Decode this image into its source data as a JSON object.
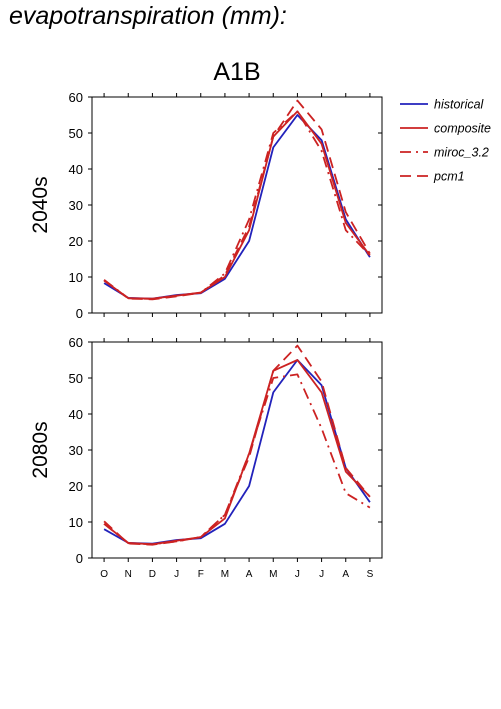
{
  "page_title": "evapotranspiration (mm):",
  "colors": {
    "historical": "#2222bb",
    "projection": "#cc2222"
  },
  "chart_data": [
    {
      "type": "line",
      "title": "A1B",
      "ylabel": "2040s",
      "xlabel": "",
      "categories": [
        "O",
        "N",
        "D",
        "J",
        "F",
        "M",
        "A",
        "M",
        "J",
        "J",
        "A",
        "S"
      ],
      "ylim": [
        0,
        60
      ],
      "yticks": [
        0,
        10,
        20,
        30,
        40,
        50,
        60
      ],
      "legend_position": "right",
      "series": [
        {
          "name": "historical",
          "color": "#2222bb",
          "dash": "solid",
          "values": [
            8.3,
            4.2,
            4.0,
            5.0,
            5.5,
            9.5,
            20,
            46,
            55,
            48,
            26,
            15.5
          ]
        },
        {
          "name": "composite",
          "color": "#cc2222",
          "dash": "solid",
          "values": [
            9.0,
            4.1,
            4.0,
            4.8,
            5.7,
            10,
            23,
            49,
            56,
            47,
            25,
            16
          ]
        },
        {
          "name": "miroc_3.2",
          "color": "#cc2222",
          "dash": "dashdot",
          "values": [
            9.2,
            4.1,
            3.9,
            4.8,
            5.6,
            11,
            26,
            50,
            56,
            45,
            23,
            16
          ]
        },
        {
          "name": "pcm1",
          "color": "#cc2222",
          "dash": "dash",
          "values": [
            9.2,
            4.0,
            3.8,
            4.6,
            5.6,
            10.5,
            24,
            49,
            59,
            51,
            28,
            16.5
          ]
        }
      ]
    },
    {
      "type": "line",
      "title": "",
      "ylabel": "2080s",
      "xlabel": "",
      "categories": [
        "O",
        "N",
        "D",
        "J",
        "F",
        "M",
        "A",
        "M",
        "J",
        "J",
        "A",
        "S"
      ],
      "ylim": [
        0,
        60
      ],
      "yticks": [
        0,
        10,
        20,
        30,
        40,
        50,
        60
      ],
      "series": [
        {
          "name": "historical",
          "color": "#2222bb",
          "dash": "solid",
          "values": [
            8.0,
            4.2,
            4.0,
            5.0,
            5.5,
            9.5,
            20,
            46,
            55,
            48,
            25,
            15.5
          ]
        },
        {
          "name": "composite",
          "color": "#cc2222",
          "dash": "solid",
          "values": [
            9.5,
            4.2,
            3.8,
            4.8,
            5.8,
            11,
            29,
            52,
            55,
            46,
            24,
            17
          ]
        },
        {
          "name": "miroc_3.2",
          "color": "#cc2222",
          "dash": "dashdot",
          "values": [
            9.5,
            4.1,
            3.8,
            4.6,
            5.8,
            12,
            29,
            50,
            51,
            36,
            18,
            14
          ]
        },
        {
          "name": "pcm1",
          "color": "#cc2222",
          "dash": "dash",
          "values": [
            10.2,
            4.0,
            3.7,
            4.6,
            5.8,
            12,
            28,
            52,
            59,
            49,
            25,
            17
          ]
        }
      ]
    }
  ]
}
